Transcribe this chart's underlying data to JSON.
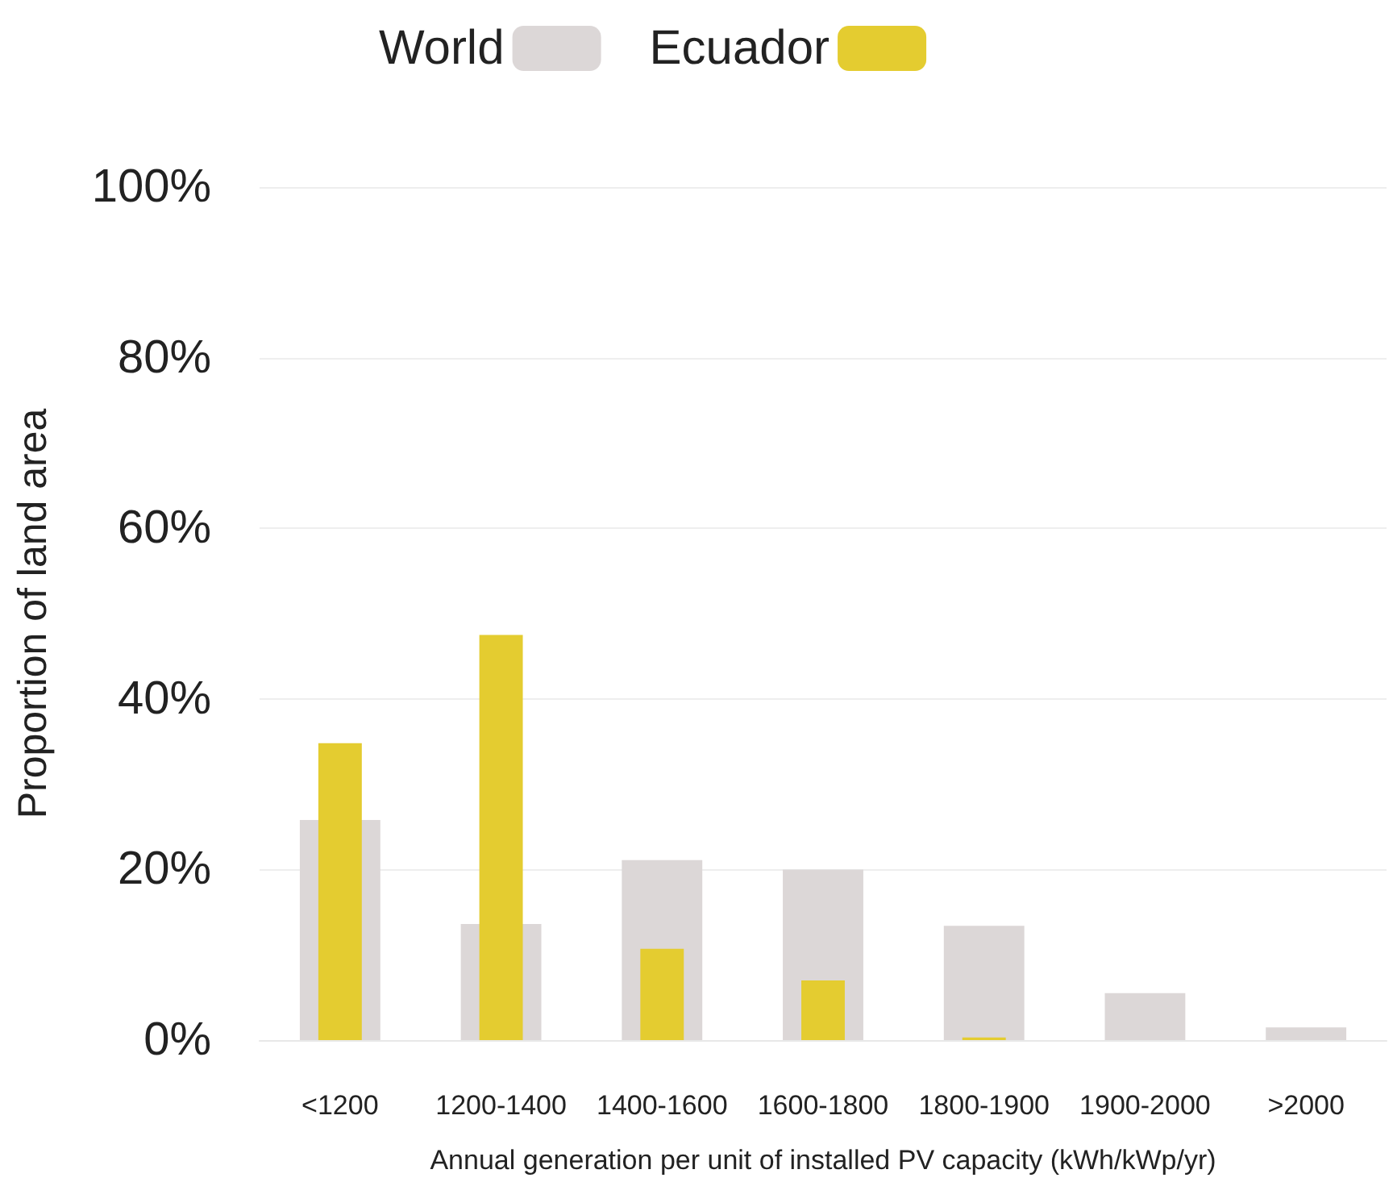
{
  "chart_data": {
    "type": "bar",
    "xlabel": "Annual generation per unit of installed PV capacity (kWh/kWp/yr)",
    "ylabel": "Proportion of land area",
    "categories": [
      "<1200",
      "1200-1400",
      "1400-1600",
      "1600-1800",
      "1800-1900",
      "1900-2000",
      ">2000"
    ],
    "series": [
      {
        "name": "World",
        "color": "#dcd7d7",
        "values": [
          25.8,
          13.6,
          21.1,
          20.0,
          13.4,
          5.5,
          1.5
        ]
      },
      {
        "name": "Ecuador",
        "color": "#e4cc30",
        "values": [
          34.8,
          47.5,
          10.7,
          7.0,
          0.3,
          0,
          0
        ]
      }
    ],
    "ylim": [
      0,
      100
    ],
    "yticks": [
      {
        "value": 0,
        "label": "0%"
      },
      {
        "value": 20,
        "label": "20%"
      },
      {
        "value": 40,
        "label": "40%"
      },
      {
        "value": 60,
        "label": "60%"
      },
      {
        "value": 80,
        "label": "80%"
      },
      {
        "value": 100,
        "label": "100%"
      }
    ],
    "grid": "y",
    "legend": "top"
  }
}
